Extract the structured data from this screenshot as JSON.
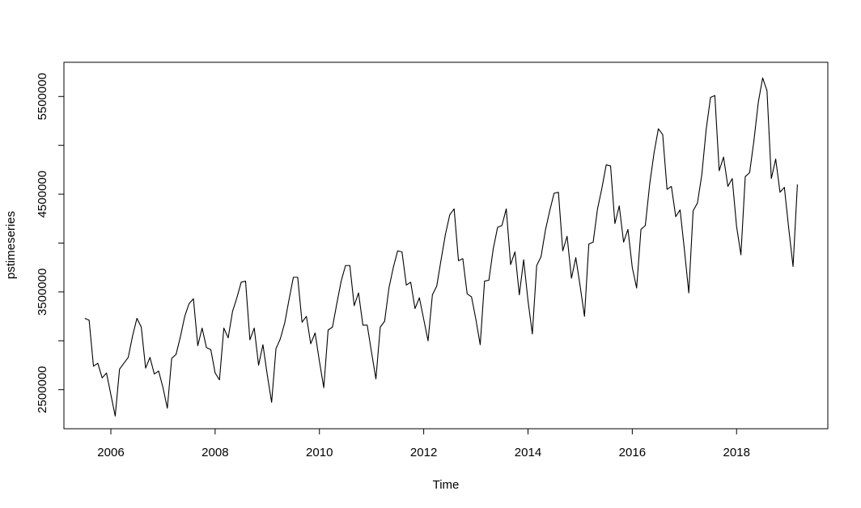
{
  "chart_data": {
    "type": "line",
    "title": "",
    "xlabel": "Time",
    "ylabel": "pstimeseries",
    "xlim": [
      2005.1,
      2019.75
    ],
    "ylim": [
      2100000,
      5850000
    ],
    "x_ticks": [
      2006,
      2008,
      2010,
      2012,
      2014,
      2016,
      2018
    ],
    "x_tick_labels": [
      "2006",
      "2008",
      "2010",
      "2012",
      "2014",
      "2016",
      "2018"
    ],
    "y_ticks": [
      2500000,
      3000000,
      3500000,
      4000000,
      4500000,
      5000000,
      5500000
    ],
    "y_tick_labels": [
      "2500000",
      "",
      "3500000",
      "",
      "4500000",
      "",
      "5500000"
    ],
    "grid": false,
    "line_color": "#000000",
    "series": [
      {
        "start": [
          2005,
          7
        ],
        "frequency": 12,
        "values": [
          3230000,
          3210000,
          2740000,
          2770000,
          2620000,
          2670000,
          2450000,
          2230000,
          2710000,
          2770000,
          2830000,
          3050000,
          3230000,
          3140000,
          2720000,
          2830000,
          2660000,
          2690000,
          2520000,
          2310000,
          2820000,
          2860000,
          3040000,
          3250000,
          3380000,
          3430000,
          2950000,
          3130000,
          2930000,
          2910000,
          2670000,
          2600000,
          3130000,
          3030000,
          3300000,
          3440000,
          3600000,
          3610000,
          3010000,
          3130000,
          2750000,
          2960000,
          2650000,
          2370000,
          2920000,
          3020000,
          3180000,
          3420000,
          3650000,
          3650000,
          3190000,
          3250000,
          2970000,
          3080000,
          2790000,
          2520000,
          3110000,
          3140000,
          3380000,
          3610000,
          3770000,
          3770000,
          3360000,
          3490000,
          3160000,
          3160000,
          2880000,
          2610000,
          3140000,
          3200000,
          3540000,
          3750000,
          3920000,
          3910000,
          3570000,
          3600000,
          3330000,
          3440000,
          3220000,
          3000000,
          3470000,
          3560000,
          3830000,
          4090000,
          4290000,
          4350000,
          3820000,
          3840000,
          3480000,
          3450000,
          3220000,
          2960000,
          3610000,
          3620000,
          3940000,
          4160000,
          4180000,
          4350000,
          3780000,
          3910000,
          3470000,
          3830000,
          3410000,
          3070000,
          3770000,
          3860000,
          4130000,
          4330000,
          4510000,
          4520000,
          3920000,
          4070000,
          3640000,
          3850000,
          3560000,
          3250000,
          3990000,
          4010000,
          4350000,
          4560000,
          4800000,
          4790000,
          4200000,
          4380000,
          4010000,
          4140000,
          3750000,
          3540000,
          4140000,
          4180000,
          4600000,
          4920000,
          5170000,
          5110000,
          4550000,
          4580000,
          4270000,
          4340000,
          3930000,
          3490000,
          4330000,
          4410000,
          4700000,
          5160000,
          5490000,
          5510000,
          4740000,
          4880000,
          4580000,
          4660000,
          4170000,
          3880000,
          4680000,
          4720000,
          5050000,
          5440000,
          5690000,
          5560000,
          4660000,
          4860000,
          4520000,
          4570000,
          4150000,
          3760000,
          4600000
        ]
      }
    ]
  }
}
